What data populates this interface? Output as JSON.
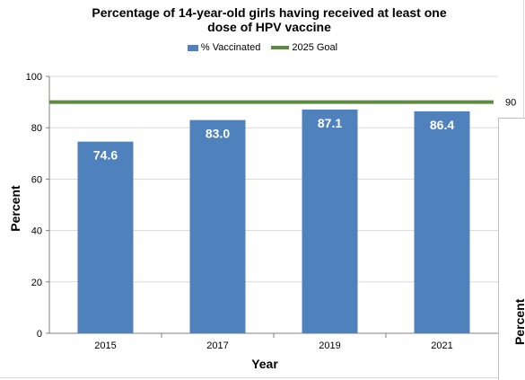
{
  "chart_data": {
    "type": "bar",
    "title_line1": "Percentage of 14-year-old girls having received at least one",
    "title_line2": "dose of HPV vaccine",
    "xlabel": "Year",
    "ylabel": "Percent",
    "categories": [
      "2015",
      "2017",
      "2019",
      "2021"
    ],
    "series": [
      {
        "name": "% Vaccinated",
        "values": [
          74.6,
          83.0,
          87.1,
          86.4
        ],
        "value_labels": [
          "74.6",
          "83.0",
          "87.1",
          "86.4"
        ]
      }
    ],
    "goal": {
      "name": "2025 Goal",
      "value": 90,
      "label": "90"
    },
    "ylim": [
      0,
      100
    ],
    "yticks": [
      "0",
      "20",
      "40",
      "60",
      "80",
      "100"
    ],
    "grid": true,
    "legend_position": "top"
  },
  "colors": {
    "bar": "#4f81bd",
    "goal_line": "#5b8c3e",
    "grid": "#d9d9d9",
    "axis": "#808080"
  },
  "second_panel": {
    "ylabel_partial": "Percent"
  }
}
